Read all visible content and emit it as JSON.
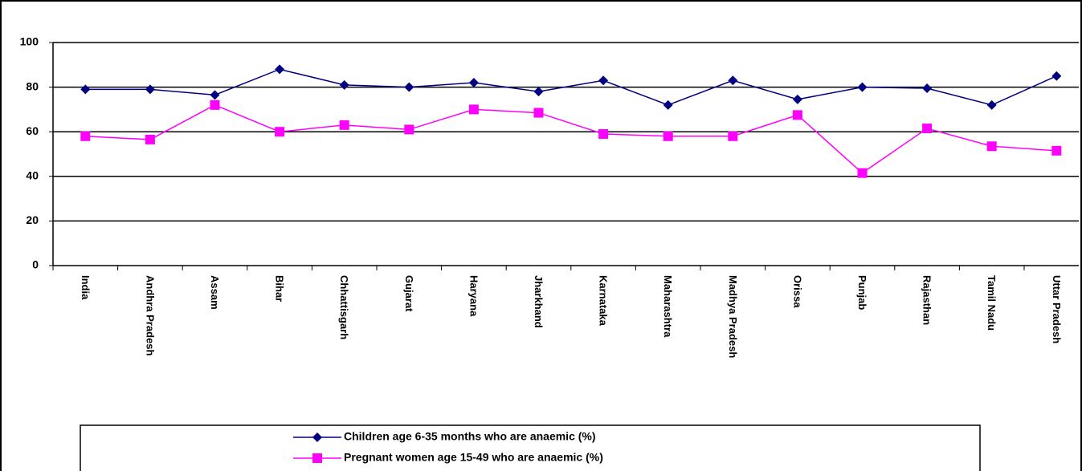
{
  "chart_data": {
    "type": "line",
    "categories": [
      "India",
      "Andhra Pradesh",
      "Assam",
      "Bihar",
      "Chhattisgarh",
      "Gujarat",
      "Haryana",
      "Jharkhand",
      "Karnataka",
      "Maharashtra",
      "Madhya Pradesh",
      "Orissa",
      "Punjab",
      "Rajasthan",
      "Tamil Nadu",
      "Uttar Pradesh"
    ],
    "series": [
      {
        "name": "Children age 6-35 months who are anaemic (%)",
        "color": "#000080",
        "marker": "diamond",
        "values": [
          79,
          79,
          76.5,
          88,
          81,
          80,
          82,
          78,
          83,
          72,
          83,
          74.5,
          80,
          79.5,
          72,
          85
        ]
      },
      {
        "name": "Pregnant women age 15-49 who are anaemic (%)",
        "color": "#ff00ff",
        "marker": "square",
        "values": [
          58,
          56.5,
          72,
          60,
          63,
          61,
          70,
          68.5,
          59,
          58,
          58,
          67.5,
          41.5,
          61.5,
          53.5,
          51.5
        ]
      }
    ],
    "ylim": [
      0,
      100
    ],
    "yticks": [
      0,
      20,
      40,
      60,
      80,
      100
    ],
    "grid": true,
    "legend": "bottom"
  }
}
